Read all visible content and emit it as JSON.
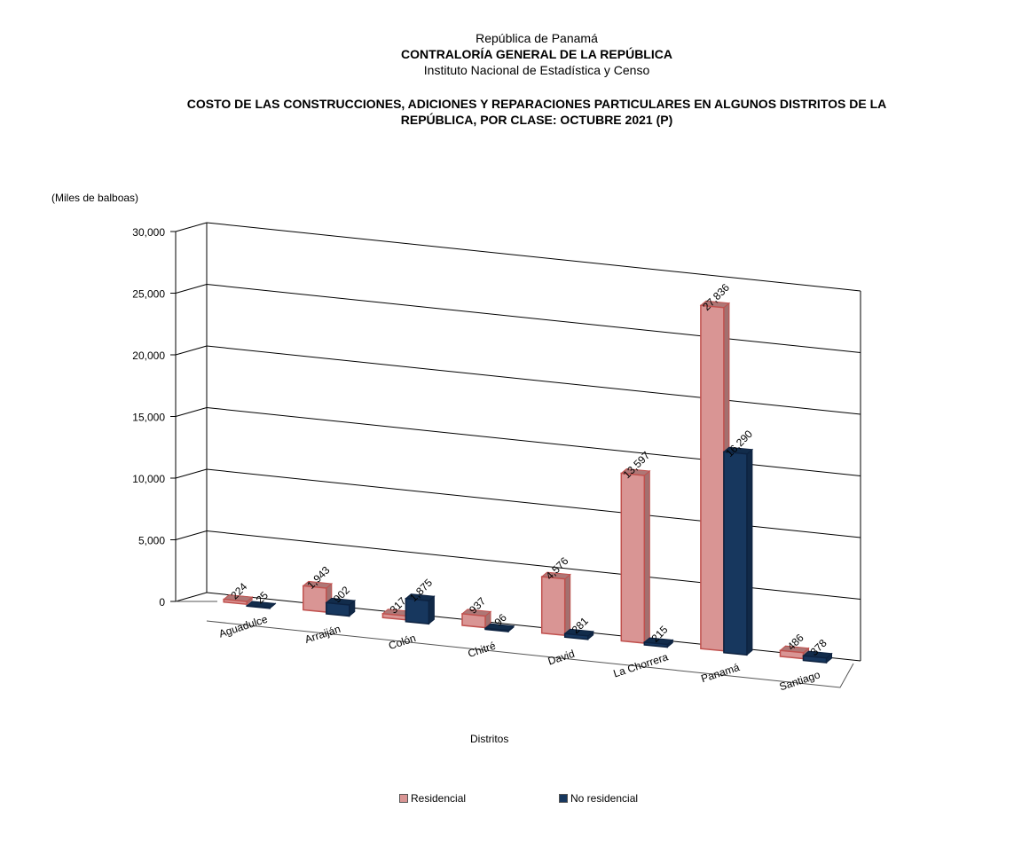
{
  "header": {
    "line1": "República de Panamá",
    "line2": "CONTRALORÍA GENERAL DE LA REPÚBLICA",
    "line3": "Instituto  Nacional de Estadística y Censo"
  },
  "chart_data": {
    "type": "bar",
    "title_line1": "COSTO DE LAS CONSTRUCCIONES, ADICIONES Y REPARACIONES PARTICULARES EN ALGUNOS DISTRITOS DE LA",
    "title_line2": "REPÚBLICA, POR CLASE: OCTUBRE 2021 (P)",
    "ylabel": "(Miles de balboas)",
    "xlabel": "Distritos",
    "ylim": [
      0,
      30000
    ],
    "yticks": [
      "0",
      "5,000",
      "10,000",
      "15,000",
      "20,000",
      "25,000",
      "30,000"
    ],
    "grid": true,
    "legend_position": "bottom",
    "categories": [
      "Aguadulce",
      "Arraiján",
      "Colón",
      "Chitré",
      "David",
      "La Chorrera",
      "Panamá",
      "Santiago"
    ],
    "series": [
      {
        "name": "Residencial",
        "color": "#d99594",
        "values": [
          224,
          1943,
          317,
          937,
          4576,
          13597,
          27836,
          486
        ],
        "labels": [
          "224",
          "1,943",
          "317",
          "937",
          "4,576",
          "13,597",
          "27,836",
          "486"
        ]
      },
      {
        "name": "No residencial",
        "color": "#17375e",
        "values": [
          25,
          902,
          1875,
          96,
          281,
          215,
          16290,
          378
        ],
        "labels": [
          "25",
          "902",
          "1,875",
          "96",
          "281",
          "215",
          "16,290",
          "378"
        ]
      }
    ]
  }
}
